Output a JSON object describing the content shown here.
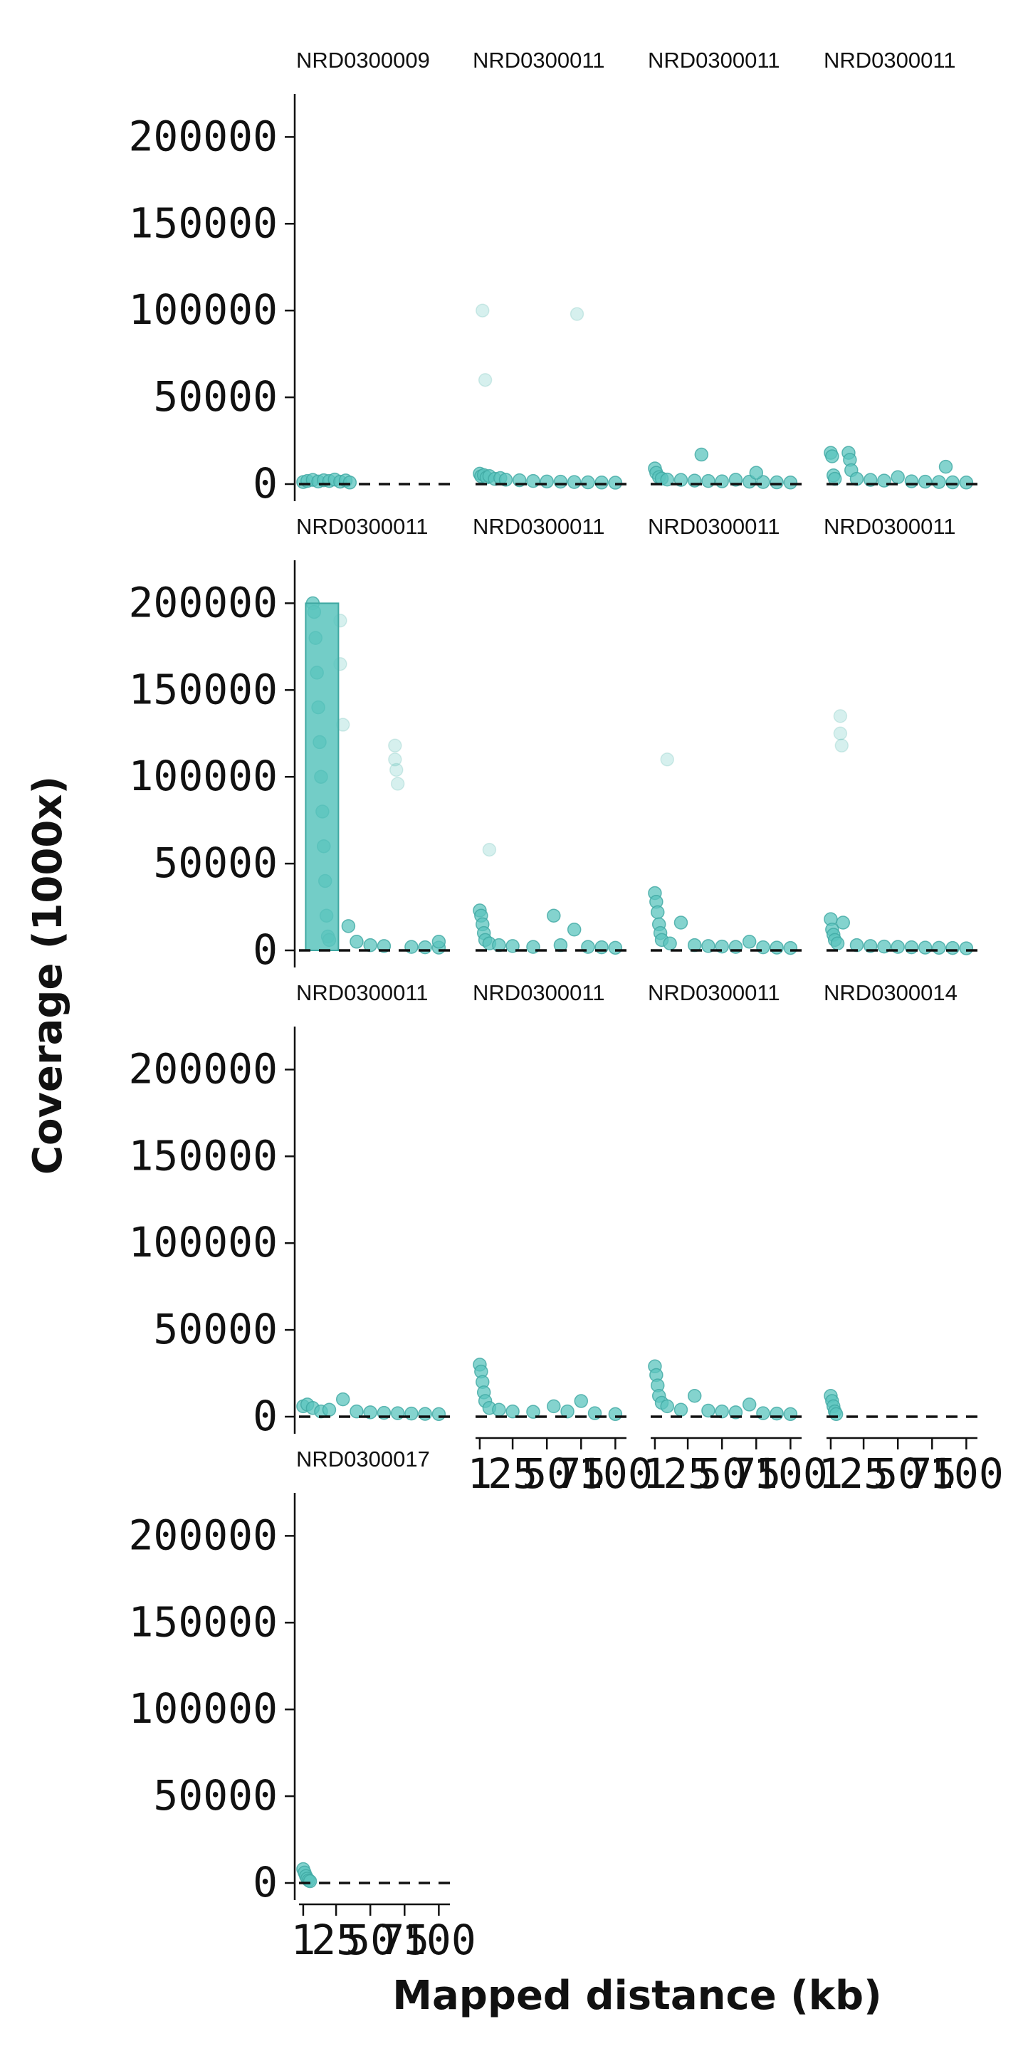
{
  "chart_data": {
    "type": "scatter",
    "title": "",
    "xlabel": "Mapped distance (kb)",
    "ylabel": "Coverage (1000x)",
    "xlim": [
      0,
      105
    ],
    "ylim": [
      0,
      210000
    ],
    "y_ticks": [
      "0",
      "50000",
      "100000",
      "150000",
      "200000"
    ],
    "x_ticks": [
      "1",
      "25",
      "50",
      "75",
      "100"
    ],
    "x_tick_values": [
      1,
      25,
      50,
      75,
      100
    ],
    "reference_line_y": 0,
    "point_color": "#5bc4bd",
    "point_edge_color": "#3fa8a2",
    "reference_line_color": "#111111",
    "grid": false,
    "panels": [
      {
        "title": "NRD0300009",
        "points": [
          [
            1,
            1200
          ],
          [
            4,
            1800
          ],
          [
            8,
            2400
          ],
          [
            12,
            1500
          ],
          [
            16,
            2200
          ],
          [
            20,
            1800
          ],
          [
            24,
            2600
          ],
          [
            28,
            1400
          ],
          [
            32,
            2100
          ],
          [
            35,
            900
          ]
        ]
      },
      {
        "title": "NRD0300011",
        "points": [
          [
            1,
            6000
          ],
          [
            2,
            4500
          ],
          [
            4,
            5200
          ],
          [
            6,
            3800
          ],
          [
            8,
            4600
          ],
          [
            12,
            3000
          ],
          [
            16,
            3500
          ],
          [
            20,
            2500
          ],
          [
            30,
            2200
          ],
          [
            40,
            1800
          ],
          [
            50,
            1500
          ],
          [
            60,
            1400
          ],
          [
            70,
            1200
          ],
          [
            80,
            1000
          ],
          [
            90,
            900
          ],
          [
            100,
            800
          ],
          [
            5,
            60000
          ],
          [
            3,
            100000
          ],
          [
            72,
            98000
          ]
        ]
      },
      {
        "title": "NRD0300011",
        "points": [
          [
            1,
            9000
          ],
          [
            2,
            6500
          ],
          [
            4,
            4000
          ],
          [
            6,
            3200
          ],
          [
            10,
            2600
          ],
          [
            20,
            2400
          ],
          [
            30,
            2000
          ],
          [
            40,
            1800
          ],
          [
            50,
            1600
          ],
          [
            60,
            2500
          ],
          [
            70,
            1400
          ],
          [
            80,
            1200
          ],
          [
            90,
            1000
          ],
          [
            100,
            900
          ],
          [
            35,
            17000
          ],
          [
            75,
            6500
          ]
        ]
      },
      {
        "title": "NRD0300011",
        "points": [
          [
            1,
            18000
          ],
          [
            2,
            16000
          ],
          [
            3,
            5000
          ],
          [
            4,
            3000
          ],
          [
            14,
            18000
          ],
          [
            15,
            14000
          ],
          [
            16,
            8000
          ],
          [
            20,
            3000
          ],
          [
            30,
            2400
          ],
          [
            40,
            2000
          ],
          [
            50,
            4000
          ],
          [
            60,
            1600
          ],
          [
            70,
            1400
          ],
          [
            80,
            1200
          ],
          [
            90,
            1000
          ],
          [
            100,
            900
          ],
          [
            85,
            10000
          ]
        ]
      },
      {
        "title": "NRD0300011",
        "points": [
          [
            8,
            200000
          ],
          [
            9,
            195000
          ],
          [
            10,
            180000
          ],
          [
            11,
            160000
          ],
          [
            12,
            140000
          ],
          [
            13,
            120000
          ],
          [
            14,
            100000
          ],
          [
            15,
            80000
          ],
          [
            16,
            60000
          ],
          [
            17,
            40000
          ],
          [
            18,
            20000
          ],
          [
            19,
            8000
          ],
          [
            20,
            6000
          ],
          [
            28,
            190000
          ],
          [
            28,
            165000
          ],
          [
            30,
            130000
          ],
          [
            34,
            14000
          ],
          [
            40,
            5000
          ],
          [
            50,
            3000
          ],
          [
            60,
            2500
          ],
          [
            68,
            118000
          ],
          [
            68,
            110000
          ],
          [
            69,
            104000
          ],
          [
            70,
            96000
          ],
          [
            80,
            2000
          ],
          [
            90,
            1800
          ],
          [
            100,
            1600
          ],
          [
            100,
            5000
          ]
        ]
      },
      {
        "title": "NRD0300011",
        "points": [
          [
            1,
            23000
          ],
          [
            2,
            20000
          ],
          [
            3,
            15000
          ],
          [
            4,
            10000
          ],
          [
            5,
            6000
          ],
          [
            8,
            4000
          ],
          [
            15,
            3000
          ],
          [
            25,
            2500
          ],
          [
            40,
            2000
          ],
          [
            55,
            20000
          ],
          [
            60,
            3000
          ],
          [
            70,
            12000
          ],
          [
            80,
            2000
          ],
          [
            90,
            1800
          ],
          [
            100,
            1500
          ],
          [
            8,
            58000
          ]
        ]
      },
      {
        "title": "NRD0300011",
        "points": [
          [
            1,
            33000
          ],
          [
            2,
            28000
          ],
          [
            3,
            22000
          ],
          [
            4,
            15000
          ],
          [
            5,
            10000
          ],
          [
            6,
            6000
          ],
          [
            10,
            110000
          ],
          [
            12,
            4000
          ],
          [
            20,
            16000
          ],
          [
            30,
            3000
          ],
          [
            40,
            2500
          ],
          [
            50,
            2200
          ],
          [
            60,
            2000
          ],
          [
            70,
            5000
          ],
          [
            80,
            1800
          ],
          [
            90,
            1600
          ],
          [
            100,
            1400
          ]
        ]
      },
      {
        "title": "NRD0300011",
        "points": [
          [
            1,
            18000
          ],
          [
            2,
            12000
          ],
          [
            3,
            9000
          ],
          [
            4,
            6000
          ],
          [
            6,
            4000
          ],
          [
            8,
            135000
          ],
          [
            8,
            125000
          ],
          [
            9,
            118000
          ],
          [
            10,
            16000
          ],
          [
            20,
            3000
          ],
          [
            30,
            2500
          ],
          [
            40,
            2200
          ],
          [
            50,
            2000
          ],
          [
            60,
            1800
          ],
          [
            70,
            1600
          ],
          [
            80,
            1500
          ],
          [
            90,
            1400
          ],
          [
            100,
            1200
          ]
        ]
      },
      {
        "title": "NRD0300011",
        "points": [
          [
            1,
            6000
          ],
          [
            4,
            7000
          ],
          [
            8,
            5000
          ],
          [
            14,
            3000
          ],
          [
            20,
            4000
          ],
          [
            30,
            10000
          ],
          [
            40,
            3000
          ],
          [
            50,
            2500
          ],
          [
            60,
            2200
          ],
          [
            70,
            2000
          ],
          [
            80,
            1800
          ],
          [
            90,
            1600
          ],
          [
            100,
            1500
          ]
        ]
      },
      {
        "title": "NRD0300011",
        "points": [
          [
            1,
            30000
          ],
          [
            2,
            26000
          ],
          [
            3,
            20000
          ],
          [
            4,
            14000
          ],
          [
            5,
            9000
          ],
          [
            8,
            5000
          ],
          [
            15,
            4000
          ],
          [
            25,
            3000
          ],
          [
            40,
            2800
          ],
          [
            55,
            6000
          ],
          [
            65,
            3000
          ],
          [
            75,
            9000
          ],
          [
            85,
            2000
          ],
          [
            100,
            1500
          ]
        ]
      },
      {
        "title": "NRD0300011",
        "points": [
          [
            1,
            29000
          ],
          [
            2,
            24000
          ],
          [
            3,
            18000
          ],
          [
            4,
            12000
          ],
          [
            6,
            8000
          ],
          [
            10,
            6000
          ],
          [
            20,
            4000
          ],
          [
            30,
            12000
          ],
          [
            40,
            3500
          ],
          [
            50,
            3000
          ],
          [
            60,
            2500
          ],
          [
            70,
            7000
          ],
          [
            80,
            2000
          ],
          [
            90,
            1800
          ],
          [
            100,
            1500
          ]
        ]
      },
      {
        "title": "NRD0300014",
        "points": [
          [
            1,
            12000
          ],
          [
            2,
            9000
          ],
          [
            3,
            6000
          ],
          [
            4,
            3000
          ],
          [
            5,
            1500
          ]
        ]
      },
      {
        "title": "NRD0300017",
        "points": [
          [
            1,
            8000
          ],
          [
            2,
            6000
          ],
          [
            3,
            4000
          ],
          [
            4,
            2500
          ],
          [
            5,
            1500
          ],
          [
            6,
            1000
          ]
        ]
      }
    ]
  }
}
